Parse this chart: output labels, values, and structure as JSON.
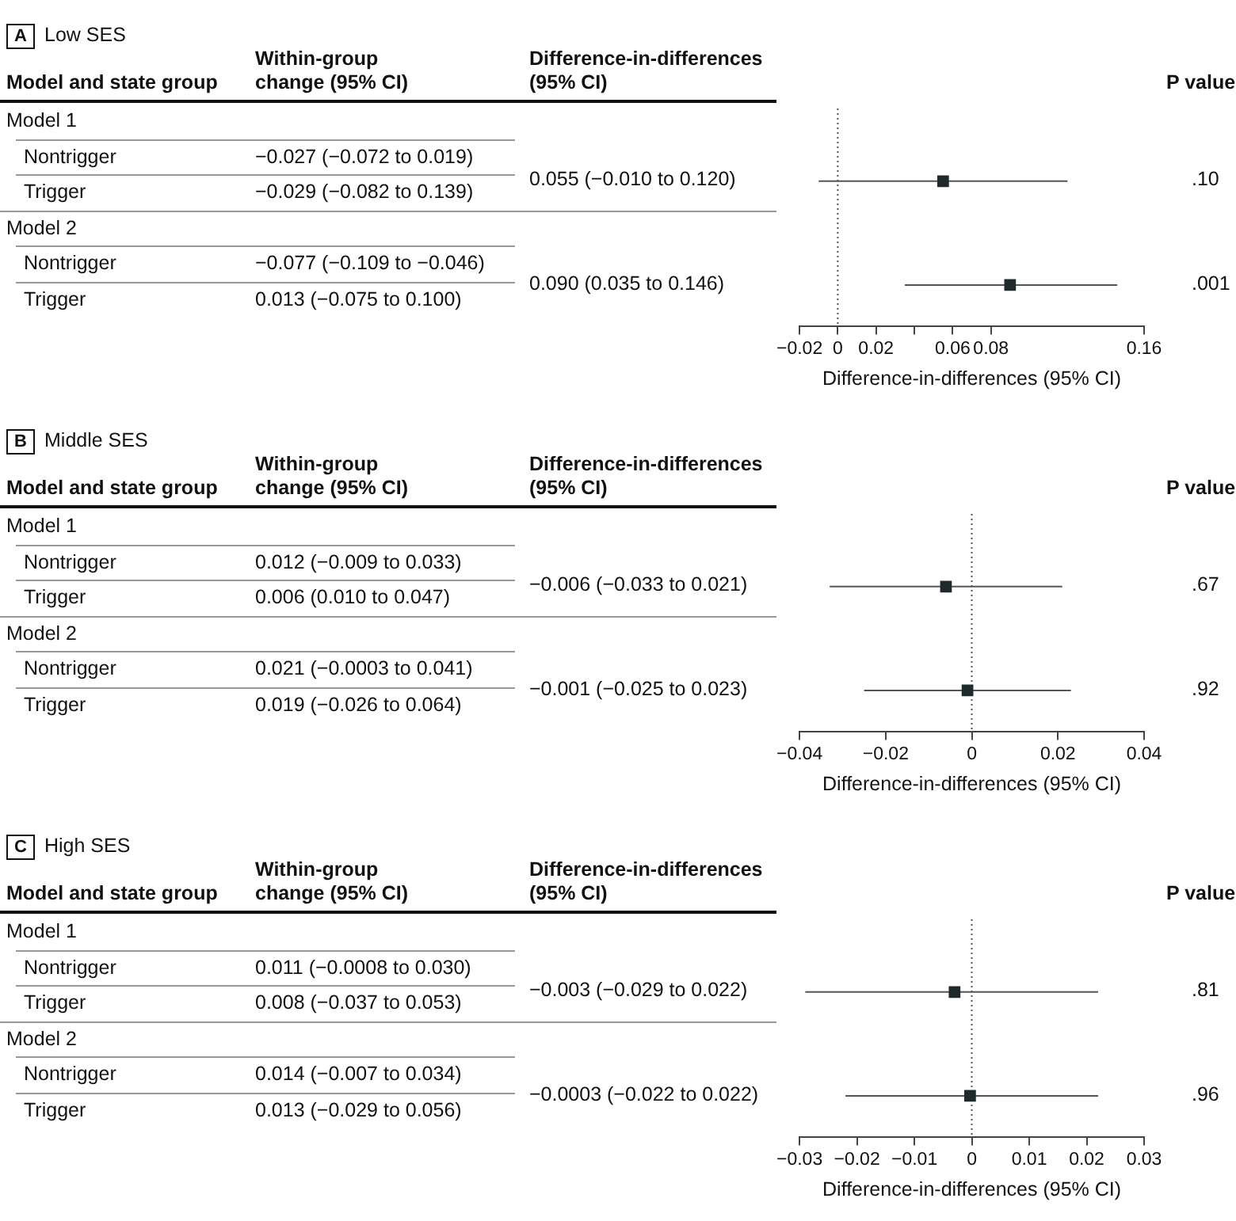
{
  "chart_data": [
    {
      "type": "scatter",
      "orientation": "horizontal",
      "xlabel": "Difference-in-differences (95% CI)",
      "categories": [
        null,
        null
      ],
      "values": [
        0.055,
        0.09
      ],
      "errors": [
        [
          -0.01,
          0.12
        ],
        [
          0.035,
          0.146
        ]
      ],
      "color": "#1f2b2b",
      "marker": "square",
      "tick_labels": "x",
      "xlim": [
        -0.02,
        0.16
      ],
      "xticks": [
        {
          "value": -0.02,
          "label": "−0.02"
        },
        0,
        0.02,
        {
          "value": 0.04,
          "label": null
        },
        0.06,
        0.08,
        0.16
      ],
      "ref_lines": [
        {
          "axis": "x",
          "value": 0,
          "label": null,
          "line_style": "dotted",
          "color": "#555555"
        }
      ],
      "annotations": [
        "A",
        "Model and state group",
        "Within-group change (95% CI)",
        "Difference-in-differences (95% CI)",
        "P value",
        "Nontrigger",
        "−0.027 (−0.072 to 0.019)",
        "Trigger",
        "−0.029 (−0.082 to 0.139)",
        "Nontrigger",
        "−0.077 (−0.109 to −0.046)",
        "Trigger",
        "0.013 (−0.075 to 0.100)",
        ".10",
        ".001",
        "Model 1",
        "Model 2",
        "0.055 (−0.010 to 0.120)",
        "0.090 (0.035 to 0.146)",
        "Low SES"
      ]
    },
    {
      "type": "scatter",
      "orientation": "horizontal",
      "xlabel": "Difference-in-differences (95% CI)",
      "categories": [
        null,
        null
      ],
      "values": [
        -0.006,
        -0.001
      ],
      "errors": [
        [
          -0.033,
          0.021
        ],
        [
          -0.025,
          0.023
        ]
      ],
      "color": "#1f2b2b",
      "marker": "square",
      "tick_labels": "x",
      "xlim": [
        -0.04,
        0.04
      ],
      "xticks": [
        {
          "value": -0.04,
          "label": "−0.04"
        },
        {
          "value": -0.02,
          "label": "−0.02"
        },
        0,
        0.02,
        0.04
      ],
      "ref_lines": [
        {
          "axis": "x",
          "value": 0,
          "label": null,
          "line_style": "dotted",
          "color": "#555555"
        }
      ],
      "annotations": [
        "B",
        "Model and state group",
        "Within-group change (95% CI)",
        "Difference-in-differences (95% CI)",
        "P value",
        "Nontrigger",
        "0.012 (−0.009 to 0.033)",
        "Trigger",
        "0.006 (0.010 to 0.047)",
        "Nontrigger",
        "0.021 (−0.0003 to 0.041)",
        "Trigger",
        "0.019 (−0.026 to 0.064)",
        ".67",
        ".92",
        "Model 1",
        "Model 2",
        "−0.006 (−0.033 to 0.021)",
        "−0.001 (−0.025 to 0.023)",
        "Middle SES"
      ]
    },
    {
      "type": "scatter",
      "orientation": "horizontal",
      "xlabel": "Difference-in-differences (95% CI)",
      "categories": [
        null,
        null
      ],
      "values": [
        -0.003,
        -0.0003
      ],
      "errors": [
        [
          -0.029,
          0.022
        ],
        [
          -0.022,
          0.022
        ]
      ],
      "color": "#1f2b2b",
      "marker": "square",
      "tick_labels": "x",
      "xlim": [
        -0.03,
        0.03
      ],
      "xticks": [
        {
          "value": -0.03,
          "label": "−0.03"
        },
        {
          "value": -0.02,
          "label": "−0.02"
        },
        {
          "value": -0.01,
          "label": "−0.01"
        },
        0,
        0.01,
        0.02,
        0.03
      ],
      "ref_lines": [
        {
          "axis": "x",
          "value": 0,
          "label": null,
          "line_style": "dotted",
          "color": "#555555"
        }
      ],
      "annotations": [
        "C",
        "Model and state group",
        "Within-group change (95% CI)",
        "Difference-in-differences (95% CI)",
        "P value",
        "Nontrigger",
        "0.011 (−0.0008 to 0.030)",
        "Trigger",
        "0.008 (−0.037 to 0.053)",
        "Nontrigger",
        "0.014 (−0.007 to 0.034)",
        "Trigger",
        "0.013 (−0.029 to 0.056)",
        ".81",
        ".96",
        "Model 1",
        "Model 2",
        "−0.003 (−0.029 to 0.022)",
        "−0.0003 (−0.022 to 0.022)",
        "High SES"
      ]
    }
  ]
}
